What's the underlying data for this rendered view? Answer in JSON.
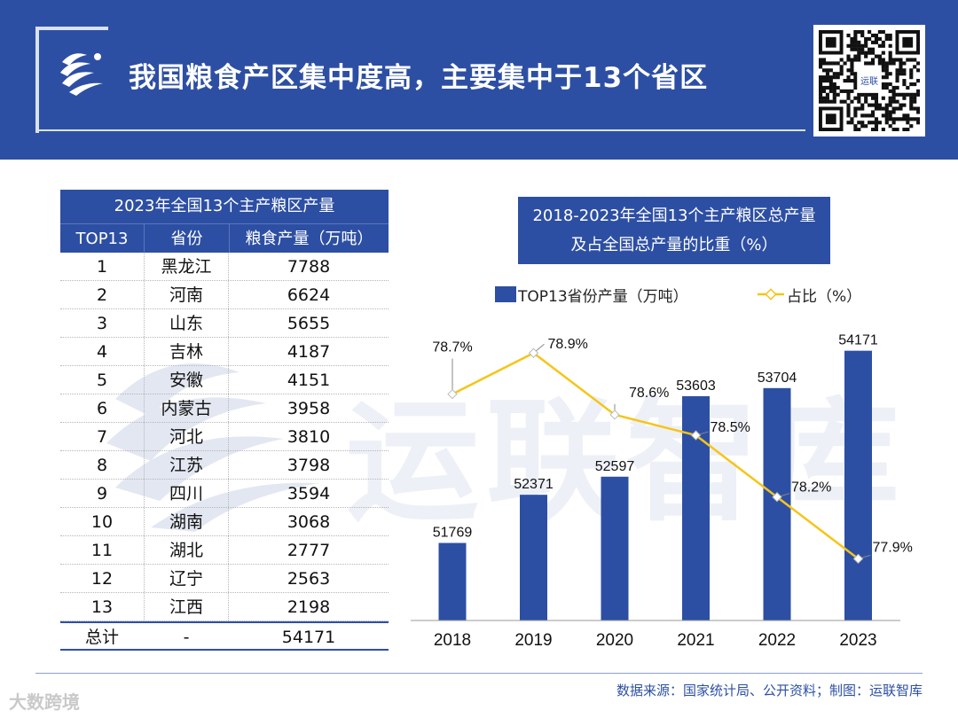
{
  "header": {
    "title": "我国粮食产区集中度高，主要集中于13个省区",
    "qr_label": "运联"
  },
  "watermark": {
    "text": "运联智库"
  },
  "table": {
    "title": "2023年全国13个主产粮区产量",
    "headers": [
      "TOP13",
      "省份",
      "粮食产量（万吨）"
    ],
    "rows": [
      [
        "1",
        "黑龙江",
        "7788"
      ],
      [
        "2",
        "河南",
        "6624"
      ],
      [
        "3",
        "山东",
        "5655"
      ],
      [
        "4",
        "吉林",
        "4187"
      ],
      [
        "5",
        "安徽",
        "4151"
      ],
      [
        "6",
        "内蒙古",
        "3958"
      ],
      [
        "7",
        "河北",
        "3810"
      ],
      [
        "8",
        "江苏",
        "3798"
      ],
      [
        "9",
        "四川",
        "3594"
      ],
      [
        "10",
        "湖南",
        "3068"
      ],
      [
        "11",
        "湖北",
        "2777"
      ],
      [
        "12",
        "辽宁",
        "2563"
      ],
      [
        "13",
        "江西",
        "2198"
      ]
    ],
    "total": [
      "总计",
      "-",
      "54171"
    ]
  },
  "chart_data": {
    "type": "bar",
    "title_line1": "2018-2023年全国13个主产粮区总产量",
    "title_line2": "及占全国总产量的比重（%）",
    "categories": [
      "2018",
      "2019",
      "2020",
      "2021",
      "2022",
      "2023"
    ],
    "series": [
      {
        "name": "TOP13省份产量（万吨）",
        "type": "bar",
        "color": "#2d4fa3",
        "values": [
          51769,
          52371,
          52597,
          53603,
          53704,
          54171
        ]
      },
      {
        "name": "占比（%）",
        "type": "line",
        "color": "#f5c518",
        "values": [
          78.7,
          78.9,
          78.6,
          78.5,
          78.2,
          77.9
        ],
        "labels": [
          "78.7%",
          "78.9%",
          "78.6%",
          "78.5%",
          "78.2%",
          "77.9%"
        ]
      }
    ],
    "bar_axis_range": [
      50800,
      54400
    ],
    "line_axis_range": [
      77.6,
      79.0
    ]
  },
  "footer": {
    "source": "数据来源：国家统计局、公开资料；制图：运联智库",
    "brand": "大数跨境"
  },
  "colors": {
    "brand_blue": "#2d4fa3",
    "line_yellow": "#f5c518"
  }
}
